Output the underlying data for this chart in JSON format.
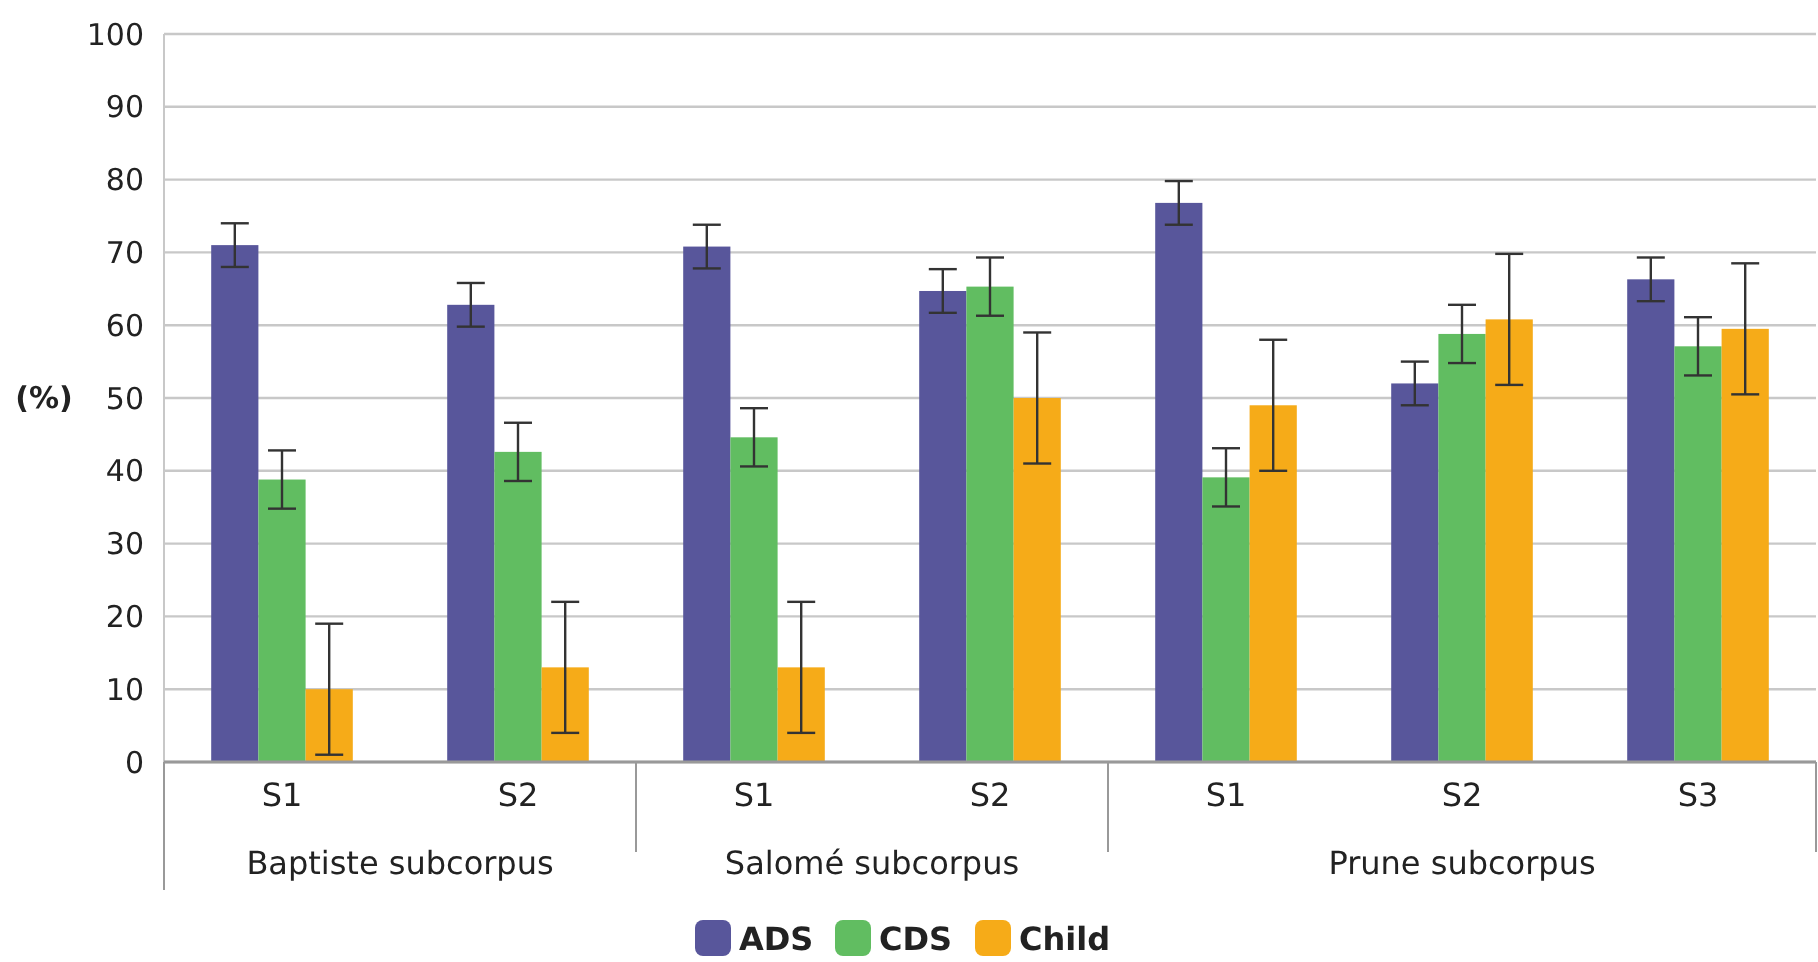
{
  "chart_data": {
    "type": "bar",
    "ylabel": "(%)",
    "categories": [
      "S1",
      "S2",
      "S1",
      "S2",
      "S1",
      "S2",
      "S3"
    ],
    "series": [
      {
        "name": "ADS",
        "color": "#58569b",
        "values": [
          71,
          62.8,
          70.8,
          64.7,
          76.8,
          52,
          66.3
        ],
        "errors": [
          3,
          3,
          3,
          3,
          3,
          3,
          3
        ]
      },
      {
        "name": "CDS",
        "color": "#61bd61",
        "values": [
          38.8,
          42.6,
          44.6,
          65.3,
          39.1,
          58.8,
          57.1
        ],
        "errors": [
          4,
          4,
          4,
          4,
          4,
          4,
          4
        ]
      },
      {
        "name": "Child",
        "color": "#f6ab18",
        "values": [
          10,
          13,
          13,
          50,
          49,
          60.8,
          59.5
        ],
        "errors": [
          9,
          9,
          9,
          9,
          9,
          9,
          9
        ]
      }
    ],
    "ylim": [
      0,
      100
    ],
    "yticks": [
      0,
      10,
      20,
      30,
      40,
      50,
      60,
      70,
      80,
      90,
      100
    ],
    "grid": "y",
    "legend": "bottom",
    "annotations": [
      "Baptiste subcorpus",
      "Salomé subcorpus",
      "Prune subcorpus"
    ]
  }
}
